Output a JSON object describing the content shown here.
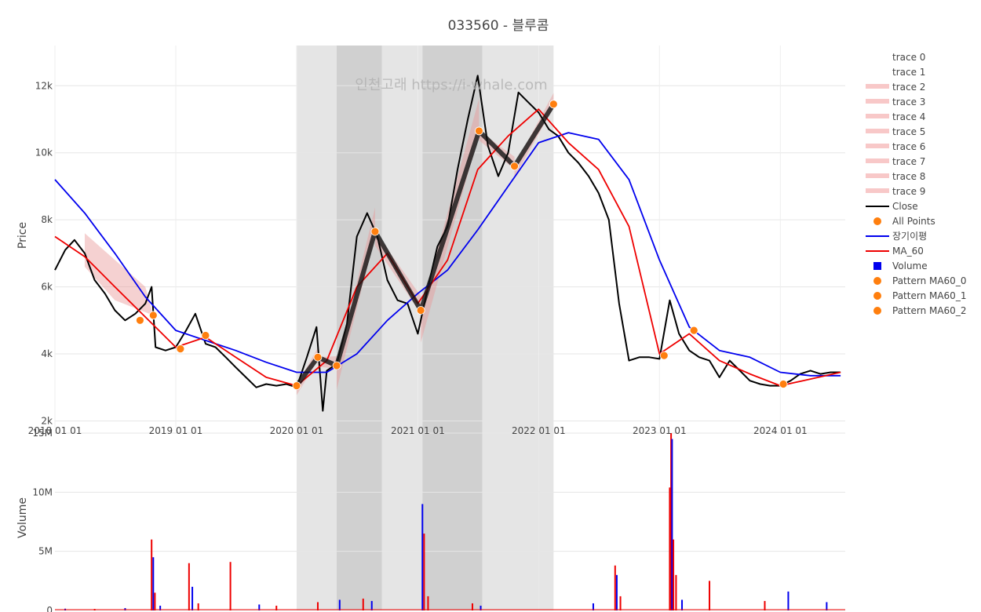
{
  "chart_data": {
    "title": "033560 - 블루콤",
    "watermark": "인천고래 https://i-whale.com",
    "price_panel": {
      "ylabel": "Price",
      "ylim": [
        1800,
        13200
      ],
      "yticks": [
        2000,
        4000,
        6000,
        8000,
        10000,
        12000
      ],
      "ytick_labels": [
        "2k",
        "4k",
        "6k",
        "8k",
        "10k",
        "12k"
      ]
    },
    "volume_panel": {
      "ylabel": "Volume",
      "ylim": [
        0,
        15000000
      ],
      "yticks": [
        0,
        5000000,
        10000000,
        15000000
      ],
      "ytick_labels": [
        "0",
        "5M",
        "10M",
        "15M"
      ]
    },
    "xlim": [
      "2018-01-01",
      "2024-07-15"
    ],
    "xticks": [
      "2018-01-01",
      "2019-01-01",
      "2020-01-01",
      "2021-01-01",
      "2022-01-01",
      "2023-01-01",
      "2024-01-01"
    ],
    "xtick_labels": [
      "2018 01 01",
      "2019 01 01",
      "2020 01 01",
      "2021 01 01",
      "2022 01 01",
      "2023 01 01",
      "2024 01 01"
    ],
    "shaded_regions": [
      {
        "start": "2020-01-01",
        "end": "2020-05-01",
        "color": "#e5e5e5"
      },
      {
        "start": "2020-05-01",
        "end": "2020-09-15",
        "color": "#d0d0d0"
      },
      {
        "start": "2020-09-15",
        "end": "2021-01-15",
        "color": "#e5e5e5"
      },
      {
        "start": "2021-01-15",
        "end": "2021-07-15",
        "color": "#d0d0d0"
      },
      {
        "start": "2021-07-15",
        "end": "2022-01-01",
        "color": "#e5e5e5"
      },
      {
        "start": "2022-01-01",
        "end": "2022-02-15",
        "color": "#e5e5e5"
      }
    ],
    "series": [
      {
        "name": "Close",
        "type": "line",
        "color": "#000000",
        "x": [
          "2018-01-01",
          "2018-02-01",
          "2018-03-01",
          "2018-04-01",
          "2018-05-01",
          "2018-06-01",
          "2018-07-01",
          "2018-08-01",
          "2018-09-01",
          "2018-10-01",
          "2018-10-20",
          "2018-11-01",
          "2018-12-01",
          "2019-01-01",
          "2019-02-01",
          "2019-03-01",
          "2019-04-01",
          "2019-05-01",
          "2019-06-01",
          "2019-07-01",
          "2019-08-01",
          "2019-09-01",
          "2019-10-01",
          "2019-11-01",
          "2019-12-01",
          "2020-01-01",
          "2020-02-01",
          "2020-03-01",
          "2020-03-20",
          "2020-04-01",
          "2020-05-01",
          "2020-06-01",
          "2020-07-01",
          "2020-08-01",
          "2020-09-01",
          "2020-10-01",
          "2020-11-01",
          "2020-12-01",
          "2021-01-01",
          "2021-02-01",
          "2021-03-01",
          "2021-04-01",
          "2021-05-01",
          "2021-06-01",
          "2021-07-01",
          "2021-08-01",
          "2021-09-01",
          "2021-10-01",
          "2021-11-01",
          "2021-12-01",
          "2022-01-01",
          "2022-02-01",
          "2022-03-01",
          "2022-04-01",
          "2022-05-01",
          "2022-06-01",
          "2022-07-01",
          "2022-08-01",
          "2022-09-01",
          "2022-10-01",
          "2022-11-01",
          "2022-12-01",
          "2023-01-01",
          "2023-02-01",
          "2023-03-01",
          "2023-04-01",
          "2023-05-01",
          "2023-06-01",
          "2023-07-01",
          "2023-08-01",
          "2023-09-01",
          "2023-10-01",
          "2023-11-01",
          "2023-12-01",
          "2024-01-01",
          "2024-02-01",
          "2024-03-01",
          "2024-04-01",
          "2024-05-01",
          "2024-06-01",
          "2024-07-01"
        ],
        "y": [
          6500,
          7100,
          7400,
          7000,
          6200,
          5800,
          5300,
          5000,
          5200,
          5500,
          6000,
          4200,
          4100,
          4200,
          4700,
          5200,
          4300,
          4200,
          3900,
          3600,
          3300,
          3000,
          3100,
          3050,
          3100,
          3000,
          3900,
          4800,
          2300,
          3500,
          3700,
          4900,
          7500,
          8200,
          7500,
          6200,
          5600,
          5500,
          4600,
          6000,
          7200,
          7800,
          9500,
          11000,
          12300,
          10200,
          9300,
          10000,
          11800,
          11500,
          11200,
          10700,
          10500,
          10000,
          9700,
          9300,
          8800,
          8000,
          5500,
          3800,
          3900,
          3900,
          3850,
          5600,
          4600,
          4100,
          3900,
          3800,
          3300,
          3800,
          3500,
          3200,
          3100,
          3050,
          3050,
          3200,
          3400,
          3500,
          3400,
          3450,
          3450
        ]
      },
      {
        "name": "장기이평",
        "type": "line",
        "color": "#0000ee",
        "x": [
          "2018-01-01",
          "2018-04-01",
          "2018-07-01",
          "2018-10-01",
          "2019-01-01",
          "2019-04-01",
          "2019-07-01",
          "2019-10-01",
          "2020-01-01",
          "2020-04-01",
          "2020-07-01",
          "2020-10-01",
          "2021-01-01",
          "2021-04-01",
          "2021-07-01",
          "2021-10-01",
          "2022-01-01",
          "2022-04-01",
          "2022-07-01",
          "2022-10-01",
          "2023-01-01",
          "2023-04-01",
          "2023-07-01",
          "2023-10-01",
          "2024-01-01",
          "2024-04-01",
          "2024-07-01"
        ],
        "y": [
          9200,
          8200,
          7000,
          5700,
          4700,
          4400,
          4100,
          3750,
          3450,
          3450,
          4000,
          5000,
          5800,
          6500,
          7700,
          9000,
          10300,
          10600,
          10400,
          9200,
          6800,
          4800,
          4100,
          3900,
          3450,
          3350,
          3350
        ]
      },
      {
        "name": "MA_60",
        "type": "line",
        "color": "#ee0000",
        "x": [
          "2018-01-01",
          "2018-04-01",
          "2018-07-01",
          "2018-10-01",
          "2019-01-01",
          "2019-04-01",
          "2019-07-01",
          "2019-10-01",
          "2020-01-01",
          "2020-04-01",
          "2020-07-01",
          "2020-10-01",
          "2021-01-01",
          "2021-04-01",
          "2021-07-01",
          "2021-10-01",
          "2022-01-01",
          "2022-04-01",
          "2022-07-01",
          "2022-10-01",
          "2023-01-01",
          "2023-04-01",
          "2023-07-01",
          "2023-10-01",
          "2024-01-01",
          "2024-04-01",
          "2024-07-01"
        ],
        "y": [
          7500,
          6900,
          6000,
          5100,
          4200,
          4500,
          3900,
          3300,
          3050,
          3800,
          6000,
          7000,
          5500,
          6800,
          9500,
          10500,
          11300,
          10300,
          9500,
          7800,
          4000,
          4600,
          3800,
          3400,
          3050,
          3250,
          3450
        ]
      },
      {
        "name": "Pattern MA60",
        "type": "zigzag",
        "color": "#111111",
        "x": [
          "2020-01-01",
          "2020-03-05",
          "2020-05-01",
          "2020-08-25",
          "2021-01-10",
          "2021-07-05",
          "2021-10-20",
          "2022-02-15"
        ],
        "y": [
          3050,
          3900,
          3650,
          7650,
          5300,
          10650,
          9600,
          11450
        ]
      },
      {
        "name": "All Points",
        "type": "markers",
        "color": "#ff7f0e",
        "x": [
          "2018-09-15",
          "2018-10-25",
          "2019-01-15",
          "2019-04-01",
          "2020-01-01",
          "2020-03-05",
          "2020-05-01",
          "2020-08-25",
          "2021-01-10",
          "2021-07-05",
          "2021-10-20",
          "2022-02-15",
          "2023-01-15",
          "2023-04-15",
          "2024-01-10"
        ],
        "y": [
          5000,
          5150,
          4150,
          4550,
          3050,
          3900,
          3650,
          7650,
          5300,
          10650,
          9600,
          11450,
          3950,
          4700,
          3100
        ]
      }
    ],
    "volume": {
      "bars": [
        {
          "x": "2018-02-01",
          "y": 150000,
          "color": "#0000ee"
        },
        {
          "x": "2018-05-01",
          "y": 120000,
          "color": "#ee0000"
        },
        {
          "x": "2018-08-01",
          "y": 200000,
          "color": "#0000ee"
        },
        {
          "x": "2018-10-20",
          "y": 6000000,
          "color": "#ee0000"
        },
        {
          "x": "2018-10-25",
          "y": 4500000,
          "color": "#0000ee"
        },
        {
          "x": "2018-10-30",
          "y": 1500000,
          "color": "#ee0000"
        },
        {
          "x": "2018-11-15",
          "y": 400000,
          "color": "#0000ee"
        },
        {
          "x": "2019-02-10",
          "y": 4000000,
          "color": "#ee0000"
        },
        {
          "x": "2019-02-20",
          "y": 2000000,
          "color": "#0000ee"
        },
        {
          "x": "2019-03-10",
          "y": 600000,
          "color": "#ee0000"
        },
        {
          "x": "2019-06-15",
          "y": 4100000,
          "color": "#ee0000"
        },
        {
          "x": "2019-09-10",
          "y": 500000,
          "color": "#0000ee"
        },
        {
          "x": "2019-11-01",
          "y": 400000,
          "color": "#ee0000"
        },
        {
          "x": "2020-03-05",
          "y": 700000,
          "color": "#ee0000"
        },
        {
          "x": "2020-05-10",
          "y": 900000,
          "color": "#0000ee"
        },
        {
          "x": "2020-07-20",
          "y": 1000000,
          "color": "#ee0000"
        },
        {
          "x": "2020-08-15",
          "y": 800000,
          "color": "#0000ee"
        },
        {
          "x": "2021-01-15",
          "y": 9000000,
          "color": "#0000ee"
        },
        {
          "x": "2021-01-20",
          "y": 6500000,
          "color": "#ee0000"
        },
        {
          "x": "2021-02-01",
          "y": 1200000,
          "color": "#ee0000"
        },
        {
          "x": "2021-06-15",
          "y": 600000,
          "color": "#ee0000"
        },
        {
          "x": "2021-07-10",
          "y": 400000,
          "color": "#0000ee"
        },
        {
          "x": "2022-06-15",
          "y": 600000,
          "color": "#0000ee"
        },
        {
          "x": "2022-08-20",
          "y": 3800000,
          "color": "#ee0000"
        },
        {
          "x": "2022-08-25",
          "y": 3000000,
          "color": "#0000ee"
        },
        {
          "x": "2022-09-05",
          "y": 1200000,
          "color": "#ee0000"
        },
        {
          "x": "2023-02-01",
          "y": 10400000,
          "color": "#ee0000"
        },
        {
          "x": "2023-02-05",
          "y": 15000000,
          "color": "#ee0000"
        },
        {
          "x": "2023-02-08",
          "y": 14500000,
          "color": "#0000ee"
        },
        {
          "x": "2023-02-12",
          "y": 6000000,
          "color": "#ee0000"
        },
        {
          "x": "2023-02-20",
          "y": 3000000,
          "color": "#ee0000"
        },
        {
          "x": "2023-03-10",
          "y": 900000,
          "color": "#0000ee"
        },
        {
          "x": "2023-06-01",
          "y": 2500000,
          "color": "#ee0000"
        },
        {
          "x": "2023-11-15",
          "y": 800000,
          "color": "#ee0000"
        },
        {
          "x": "2024-01-25",
          "y": 1600000,
          "color": "#0000ee"
        },
        {
          "x": "2024-05-20",
          "y": 700000,
          "color": "#0000ee"
        }
      ]
    },
    "legend": {
      "placement": "right",
      "entries": [
        {
          "label": "trace 0",
          "symbol": "none"
        },
        {
          "label": "trace 1",
          "symbol": "none"
        },
        {
          "label": "trace 2",
          "symbol": "band",
          "color": "#f8c8c8"
        },
        {
          "label": "trace 3",
          "symbol": "band",
          "color": "#f8c8c8"
        },
        {
          "label": "trace 4",
          "symbol": "band",
          "color": "#f8c8c8"
        },
        {
          "label": "trace 5",
          "symbol": "band",
          "color": "#f8c8c8"
        },
        {
          "label": "trace 6",
          "symbol": "band",
          "color": "#f8c8c8"
        },
        {
          "label": "trace 7",
          "symbol": "band",
          "color": "#f8c8c8"
        },
        {
          "label": "trace 8",
          "symbol": "band",
          "color": "#f8c8c8"
        },
        {
          "label": "trace 9",
          "symbol": "band",
          "color": "#f8c8c8"
        },
        {
          "label": "Close",
          "symbol": "line",
          "color": "#000000"
        },
        {
          "label": "All Points",
          "symbol": "dot",
          "color": "#ff7f0e"
        },
        {
          "label": "장기이평",
          "symbol": "line",
          "color": "#0000ee"
        },
        {
          "label": "MA_60",
          "symbol": "line",
          "color": "#ee0000"
        },
        {
          "label": "Volume",
          "symbol": "square",
          "color": "#0000ee"
        },
        {
          "label": "Pattern MA60_0",
          "symbol": "dot",
          "color": "#ff7f0e"
        },
        {
          "label": "Pattern MA60_1",
          "symbol": "dot",
          "color": "#ff7f0e"
        },
        {
          "label": "Pattern MA60_2",
          "symbol": "dot",
          "color": "#ff7f0e"
        }
      ]
    }
  }
}
